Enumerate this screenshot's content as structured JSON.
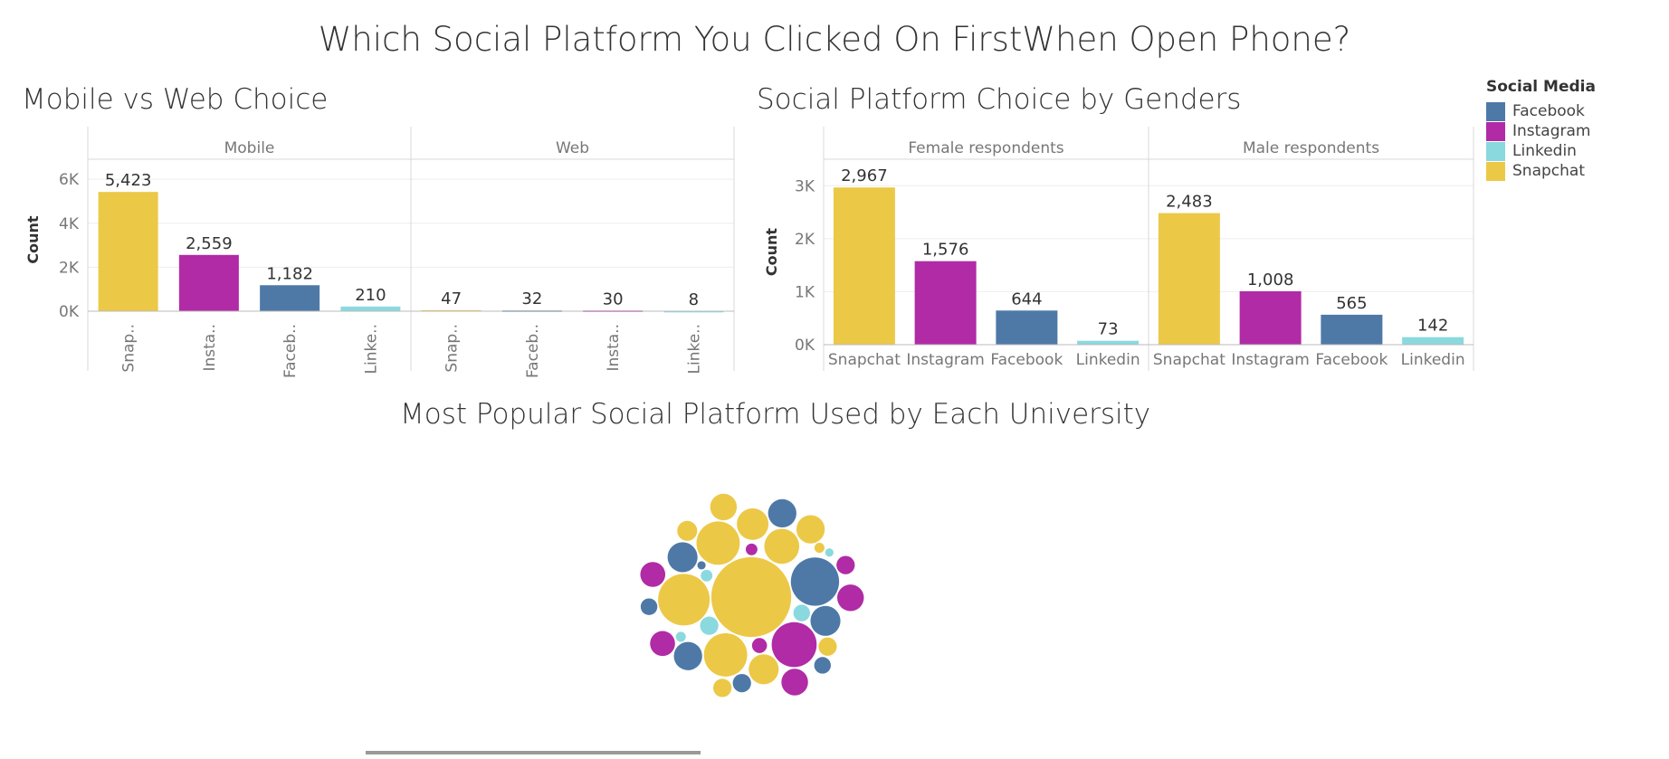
{
  "page": {
    "title": "Which Social Platform You Clicked On FirstWhen Open Phone?"
  },
  "colors": {
    "Facebook": "#4e79a7",
    "Instagram": "#b02ba5",
    "Linkedin": "#8ad9df",
    "Snapchat": "#ecc847"
  },
  "legend": {
    "title": "Social Media",
    "items": [
      "Facebook",
      "Instagram",
      "Linkedin",
      "Snapchat"
    ]
  },
  "chart_data": [
    {
      "type": "bar",
      "title": "Mobile vs Web Choice",
      "ylabel": "Count",
      "ylim": [
        0,
        6500
      ],
      "yticks": [
        0,
        2000,
        4000,
        6000
      ],
      "ytick_labels": [
        "0K",
        "2K",
        "4K",
        "6K"
      ],
      "panels": [
        {
          "name": "Mobile",
          "categories": [
            "Snap..",
            "Insta..",
            "Faceb..",
            "Linke.."
          ],
          "platforms": [
            "Snapchat",
            "Instagram",
            "Facebook",
            "Linkedin"
          ],
          "values": [
            5423,
            2559,
            1182,
            210
          ],
          "labels": [
            "5,423",
            "2,559",
            "1,182",
            "210"
          ]
        },
        {
          "name": "Web",
          "categories": [
            "Snap..",
            "Faceb..",
            "Insta..",
            "Linke.."
          ],
          "platforms": [
            "Snapchat",
            "Facebook",
            "Instagram",
            "Linkedin"
          ],
          "values": [
            47,
            32,
            30,
            8
          ],
          "labels": [
            "47",
            "32",
            "30",
            "8"
          ]
        }
      ]
    },
    {
      "type": "bar",
      "title": "Social Platform Choice by Genders",
      "ylabel": "Count",
      "ylim": [
        0,
        3500
      ],
      "yticks": [
        0,
        1000,
        2000,
        3000
      ],
      "ytick_labels": [
        "0K",
        "1K",
        "2K",
        "3K"
      ],
      "panels": [
        {
          "name": "Female respondents",
          "categories": [
            "Snapchat",
            "Instagram",
            "Facebook",
            "Linkedin"
          ],
          "platforms": [
            "Snapchat",
            "Instagram",
            "Facebook",
            "Linkedin"
          ],
          "values": [
            2967,
            1576,
            644,
            73
          ],
          "labels": [
            "2,967",
            "1,576",
            "644",
            "73"
          ]
        },
        {
          "name": "Male respondents",
          "categories": [
            "Snapchat",
            "Instagram",
            "Facebook",
            "Linkedin"
          ],
          "platforms": [
            "Snapchat",
            "Instagram",
            "Facebook",
            "Linkedin"
          ],
          "values": [
            2483,
            1008,
            565,
            142
          ],
          "labels": [
            "2,483",
            "1,008",
            "565",
            "142"
          ]
        }
      ]
    },
    {
      "type": "bubble",
      "title": "Most Popular Social Platform Used by Each University",
      "bubbles": [
        {
          "platform": "Snapchat",
          "size": 48
        },
        {
          "platform": "Snapchat",
          "size": 26
        },
        {
          "platform": "Snapchat",
          "size": 31
        },
        {
          "platform": "Snapchat",
          "size": 26
        },
        {
          "platform": "Facebook",
          "size": 29
        },
        {
          "platform": "Instagram",
          "size": 27
        },
        {
          "platform": "Facebook",
          "size": 17
        },
        {
          "platform": "Snapchat",
          "size": 18
        },
        {
          "platform": "Snapchat",
          "size": 21
        },
        {
          "platform": "Snapchat",
          "size": 19
        },
        {
          "platform": "Snapchat",
          "size": 17
        },
        {
          "platform": "Snapchat",
          "size": 16
        },
        {
          "platform": "Facebook",
          "size": 18
        },
        {
          "platform": "Facebook",
          "size": 17
        },
        {
          "platform": "Facebook",
          "size": 18
        },
        {
          "platform": "Instagram",
          "size": 16
        },
        {
          "platform": "Instagram",
          "size": 15
        },
        {
          "platform": "Instagram",
          "size": 16
        },
        {
          "platform": "Instagram",
          "size": 15
        },
        {
          "platform": "Linkedin",
          "size": 11
        },
        {
          "platform": "Linkedin",
          "size": 10
        },
        {
          "platform": "Facebook",
          "size": 11
        },
        {
          "platform": "Facebook",
          "size": 10
        },
        {
          "platform": "Facebook",
          "size": 10
        },
        {
          "platform": "Snapchat",
          "size": 12
        },
        {
          "platform": "Snapchat",
          "size": 11
        },
        {
          "platform": "Snapchat",
          "size": 11
        },
        {
          "platform": "Instagram",
          "size": 11
        },
        {
          "platform": "Instagram",
          "size": 9
        },
        {
          "platform": "Linkedin",
          "size": 7
        },
        {
          "platform": "Linkedin",
          "size": 6
        },
        {
          "platform": "Instagram",
          "size": 7
        },
        {
          "platform": "Snapchat",
          "size": 6
        },
        {
          "platform": "Facebook",
          "size": 5
        },
        {
          "platform": "Linkedin",
          "size": 5
        }
      ]
    }
  ]
}
